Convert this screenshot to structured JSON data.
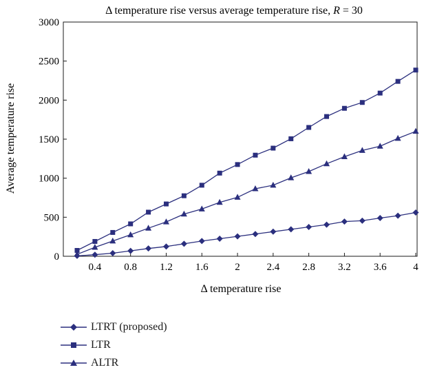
{
  "chart_data": {
    "type": "line",
    "title_prefix": "Δ temperature rise versus average temperature rise, ",
    "title_var": "R",
    "title_suffix": " = 30",
    "xlabel": "Δ temperature rise",
    "ylabel": "Average temperature rise",
    "xlim": [
      0.2,
      4.0
    ],
    "ylim": [
      0,
      3000
    ],
    "xticks": [
      0.4,
      0.8,
      1.2,
      1.6,
      2,
      2.4,
      2.8,
      3.2,
      3.6,
      4
    ],
    "xtick_labels": [
      "0.4",
      "0.8",
      "1.2",
      "1.6",
      "2",
      "2.4",
      "2.8",
      "3.2",
      "3.6",
      "4"
    ],
    "yticks": [
      0,
      500,
      1000,
      1500,
      2000,
      2500,
      3000
    ],
    "ytick_labels": [
      "0",
      "500",
      "1000",
      "1500",
      "2000",
      "2500",
      "3000"
    ],
    "grid": false,
    "legend_position": "bottom-left",
    "x": [
      0.2,
      0.4,
      0.6,
      0.8,
      1.0,
      1.2,
      1.4,
      1.6,
      1.8,
      2.0,
      2.2,
      2.4,
      2.6,
      2.8,
      3.0,
      3.2,
      3.4,
      3.6,
      3.8,
      4.0
    ],
    "series": [
      {
        "name": "LTRT (proposed)",
        "marker": "diamond",
        "values": [
          5,
          20,
          40,
          70,
          100,
          125,
          160,
          195,
          225,
          255,
          285,
          315,
          345,
          375,
          405,
          445,
          455,
          490,
          520,
          560
        ]
      },
      {
        "name": "LTR",
        "marker": "square",
        "values": [
          75,
          190,
          305,
          415,
          565,
          670,
          775,
          910,
          1065,
          1175,
          1295,
          1385,
          1505,
          1650,
          1790,
          1895,
          1970,
          2090,
          2240,
          2385
        ]
      },
      {
        "name": "ALTR",
        "marker": "triangle",
        "values": [
          25,
          115,
          195,
          275,
          360,
          440,
          540,
          605,
          690,
          755,
          865,
          910,
          1005,
          1085,
          1185,
          1275,
          1355,
          1410,
          1510,
          1600
        ]
      }
    ],
    "line_color": "#2b2f7e"
  }
}
